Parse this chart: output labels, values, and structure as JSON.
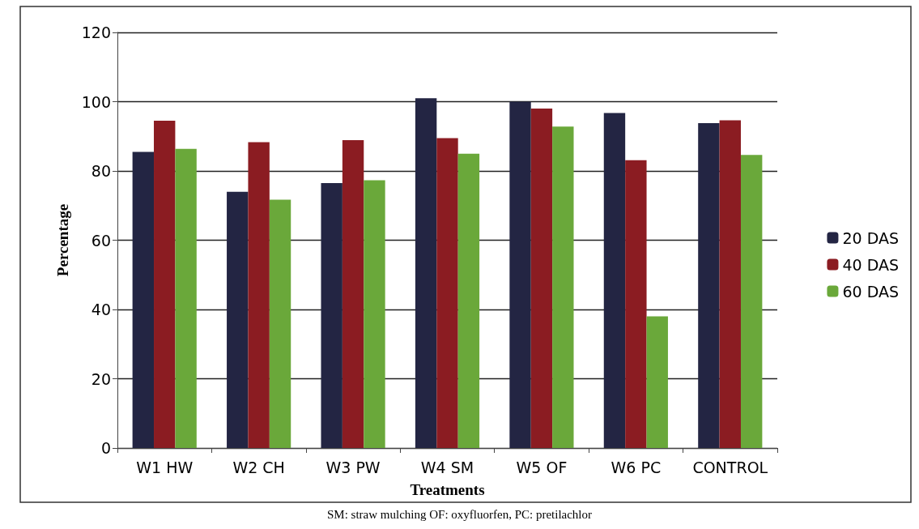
{
  "chart_data": {
    "type": "bar",
    "xlabel": "Treatments",
    "ylabel": "Percentage",
    "categories": [
      "W1 HW",
      "W2 CH",
      "W3 PW",
      "W4 SM",
      "W5 OF",
      "W6 PC",
      "CONTROL"
    ],
    "series": [
      {
        "name": "20 DAS",
        "color": "#232543",
        "values": [
          85.5,
          74,
          76.5,
          101,
          100,
          96.7,
          93.8
        ]
      },
      {
        "name": "40 DAS",
        "color": "#8b1c22",
        "values": [
          94.5,
          88.3,
          88.9,
          89.5,
          98,
          83.1,
          94.6
        ]
      },
      {
        "name": "60 DAS",
        "color": "#6aa83a",
        "values": [
          86.4,
          71.7,
          77.3,
          85,
          92.8,
          38,
          84.6
        ]
      }
    ],
    "ylim": [
      0,
      120
    ],
    "yticks": [
      0,
      20,
      40,
      60,
      80,
      100,
      120
    ],
    "grid": "y",
    "legend": "right",
    "annotations": [
      "SM: straw mulching OF: oxyfluorfen, PC: pretilachlor"
    ]
  }
}
